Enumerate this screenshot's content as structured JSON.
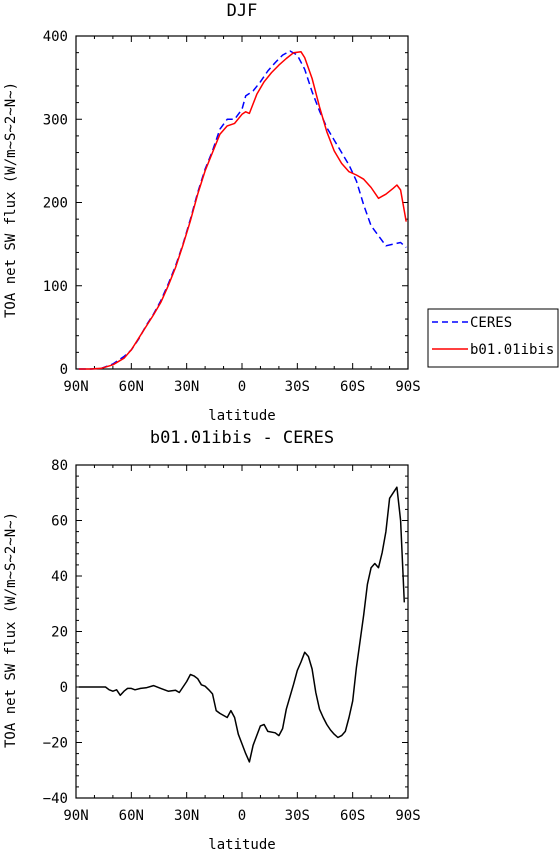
{
  "chart_data": [
    {
      "type": "line",
      "title": "DJF",
      "xlabel": "latitude",
      "ylabel": "TOA net SW flux (W/m~S~2~N~)",
      "x_tick_labels": [
        "90N",
        "60N",
        "30N",
        "0",
        "30S",
        "60S",
        "90S"
      ],
      "x_tick_values": [
        -90,
        -60,
        -30,
        0,
        30,
        60,
        90
      ],
      "y_tick_labels": [
        "0",
        "100",
        "200",
        "300",
        "400"
      ],
      "y_tick_values": [
        0,
        100,
        200,
        300,
        400
      ],
      "xlim": [
        -90,
        90
      ],
      "ylim": [
        0,
        400
      ],
      "grid": false,
      "legend_position": "right",
      "series": [
        {
          "name": "CERES",
          "color": "#0000ff",
          "style": "dashed",
          "points": [
            [
              -88.5,
              0
            ],
            [
              -82,
              0
            ],
            [
              -76,
              1
            ],
            [
              -70,
              6
            ],
            [
              -64,
              15
            ],
            [
              -60,
              23
            ],
            [
              -56,
              36
            ],
            [
              -52,
              52
            ],
            [
              -48,
              66
            ],
            [
              -44,
              82
            ],
            [
              -40,
              102
            ],
            [
              -36,
              124
            ],
            [
              -32,
              150
            ],
            [
              -28,
              180
            ],
            [
              -24,
              212
            ],
            [
              -20,
              240
            ],
            [
              -16,
              262
            ],
            [
              -12,
              288
            ],
            [
              -8,
              300
            ],
            [
              -4,
              300
            ],
            [
              0,
              312
            ],
            [
              2,
              328
            ],
            [
              6,
              334
            ],
            [
              10,
              345
            ],
            [
              14,
              358
            ],
            [
              18,
              368
            ],
            [
              22,
              377
            ],
            [
              26,
              382
            ],
            [
              30,
              377
            ],
            [
              34,
              360
            ],
            [
              38,
              333
            ],
            [
              42,
              310
            ],
            [
              46,
              290
            ],
            [
              50,
              275
            ],
            [
              54,
              260
            ],
            [
              58,
              245
            ],
            [
              62,
              226
            ],
            [
              66,
              197
            ],
            [
              70,
              172
            ],
            [
              74,
              160
            ],
            [
              78,
              148
            ],
            [
              82,
              150
            ],
            [
              86,
              152
            ],
            [
              89,
              146
            ]
          ]
        },
        {
          "name": "b01.01ibis",
          "color": "#ff0000",
          "style": "solid",
          "points": [
            [
              -88.5,
              0
            ],
            [
              -82,
              0
            ],
            [
              -76,
              1
            ],
            [
              -70,
              5
            ],
            [
              -64,
              13
            ],
            [
              -60,
              23
            ],
            [
              -56,
              37
            ],
            [
              -52,
              51
            ],
            [
              -48,
              65
            ],
            [
              -44,
              80
            ],
            [
              -40,
              100
            ],
            [
              -36,
              122
            ],
            [
              -32,
              149
            ],
            [
              -28,
              178
            ],
            [
              -24,
              210
            ],
            [
              -20,
              238
            ],
            [
              -16,
              260
            ],
            [
              -12,
              282
            ],
            [
              -8,
              292
            ],
            [
              -4,
              295
            ],
            [
              0,
              306
            ],
            [
              2,
              309
            ],
            [
              4,
              307
            ],
            [
              8,
              330
            ],
            [
              12,
              345
            ],
            [
              16,
              356
            ],
            [
              20,
              365
            ],
            [
              24,
              373
            ],
            [
              28,
              380
            ],
            [
              32,
              381
            ],
            [
              34,
              374
            ],
            [
              38,
              349
            ],
            [
              42,
              315
            ],
            [
              46,
              285
            ],
            [
              50,
              262
            ],
            [
              54,
              247
            ],
            [
              58,
              237
            ],
            [
              62,
              233
            ],
            [
              66,
              228
            ],
            [
              70,
              218
            ],
            [
              74,
              205
            ],
            [
              78,
              210
            ],
            [
              82,
              217
            ],
            [
              84,
              221
            ],
            [
              86,
              215
            ],
            [
              89,
              177
            ]
          ]
        }
      ]
    },
    {
      "type": "line",
      "title": "b01.01ibis - CERES",
      "xlabel": "latitude",
      "ylabel": "TOA net SW flux (W/m~S~2~N~)",
      "x_tick_labels": [
        "90N",
        "60N",
        "30N",
        "0",
        "30S",
        "60S",
        "90S"
      ],
      "x_tick_values": [
        -90,
        -60,
        -30,
        0,
        30,
        60,
        90
      ],
      "y_tick_labels": [
        "−40",
        "−20",
        "0",
        "20",
        "40",
        "60",
        "80"
      ],
      "y_tick_values": [
        -40,
        -20,
        0,
        20,
        40,
        60,
        80
      ],
      "xlim": [
        -90,
        90
      ],
      "ylim": [
        -40,
        80
      ],
      "grid": false,
      "series": [
        {
          "color": "#000000",
          "style": "solid",
          "points": [
            [
              -88.5,
              0
            ],
            [
              -82,
              0
            ],
            [
              -76,
              0
            ],
            [
              -74,
              0
            ],
            [
              -72,
              -1
            ],
            [
              -70,
              -1.5
            ],
            [
              -68,
              -1
            ],
            [
              -66,
              -3
            ],
            [
              -64,
              -1.5
            ],
            [
              -62,
              -0.5
            ],
            [
              -60,
              -0.5
            ],
            [
              -58,
              -1
            ],
            [
              -55,
              -0.5
            ],
            [
              -52,
              -0.3
            ],
            [
              -48,
              0.5
            ],
            [
              -44,
              -0.5
            ],
            [
              -40,
              -1.5
            ],
            [
              -36,
              -1.2
            ],
            [
              -34,
              -2
            ],
            [
              -30,
              2
            ],
            [
              -28,
              4.5
            ],
            [
              -26,
              4
            ],
            [
              -24,
              3
            ],
            [
              -22,
              0.8
            ],
            [
              -20,
              0.3
            ],
            [
              -18,
              -1
            ],
            [
              -16,
              -2.5
            ],
            [
              -14,
              -8.5
            ],
            [
              -12,
              -9.5
            ],
            [
              -8,
              -11
            ],
            [
              -6,
              -8.5
            ],
            [
              -4,
              -11
            ],
            [
              -2,
              -17
            ],
            [
              0,
              -20.5
            ],
            [
              2,
              -24
            ],
            [
              4,
              -27
            ],
            [
              6,
              -21
            ],
            [
              10,
              -14
            ],
            [
              12,
              -13.5
            ],
            [
              14,
              -16
            ],
            [
              18,
              -16.5
            ],
            [
              20,
              -17.5
            ],
            [
              22,
              -15
            ],
            [
              24,
              -8
            ],
            [
              28,
              1
            ],
            [
              30,
              6
            ],
            [
              32,
              9
            ],
            [
              34,
              12.5
            ],
            [
              36,
              11
            ],
            [
              38,
              6.5
            ],
            [
              40,
              -2
            ],
            [
              42,
              -8
            ],
            [
              44,
              -11
            ],
            [
              46,
              -13.5
            ],
            [
              48,
              -15.5
            ],
            [
              50,
              -17
            ],
            [
              52,
              -18.2
            ],
            [
              54,
              -17.5
            ],
            [
              56,
              -16
            ],
            [
              58,
              -11
            ],
            [
              60,
              -5
            ],
            [
              62,
              7
            ],
            [
              66,
              26
            ],
            [
              68,
              37
            ],
            [
              70,
              43
            ],
            [
              72,
              44.5
            ],
            [
              74,
              43
            ],
            [
              76,
              48.5
            ],
            [
              78,
              56
            ],
            [
              80,
              68
            ],
            [
              82,
              70
            ],
            [
              84,
              72
            ],
            [
              86,
              60
            ],
            [
              88,
              30.5
            ]
          ]
        }
      ]
    }
  ]
}
